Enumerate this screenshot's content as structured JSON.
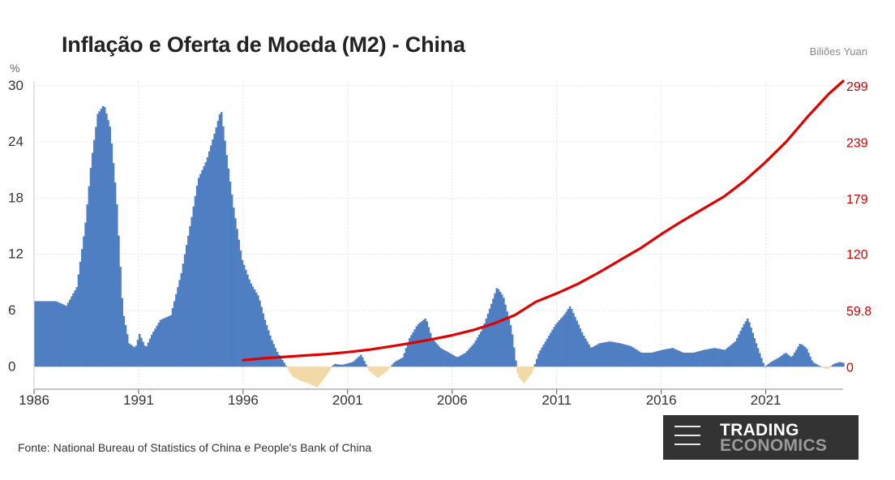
{
  "title": "Inflação e Oferta de Moeda (M2) - China",
  "left_unit": "%",
  "right_unit": "Biliões Yuan",
  "source": "Fonte: National Bureau of Statistics of China e People's Bank of China",
  "logo": {
    "line1": "TRADING",
    "line2": "ECONOMICS"
  },
  "chart_data": {
    "type": "bar+line",
    "x_ticks": [
      "1986",
      "1991",
      "1996",
      "2001",
      "2006",
      "2011",
      "2016",
      "2021"
    ],
    "x_range": [
      1986,
      2024.7
    ],
    "y_left": {
      "ticks": [
        "30",
        "24",
        "18",
        "12",
        "6",
        "0"
      ],
      "range": [
        -2.4,
        30.5
      ]
    },
    "y_right": {
      "ticks": [
        "299",
        "239",
        "179",
        "120",
        "59.8",
        "0"
      ],
      "range": [
        -23.9,
        304
      ]
    },
    "grid": true,
    "colors": {
      "positive_bars": "#4f7fc2",
      "negative_bars": "#f2d9a8",
      "m2_line": "#e00000",
      "right_axis_text": "#cc0000"
    },
    "inflation_series": {
      "name": "",
      "axis": "left",
      "points": [
        [
          1986.0,
          7.0
        ],
        [
          1987.0,
          7.0
        ],
        [
          1987.5,
          6.5
        ],
        [
          1988.0,
          8.5
        ],
        [
          1988.4,
          15.0
        ],
        [
          1988.7,
          22.0
        ],
        [
          1989.0,
          27.0
        ],
        [
          1989.3,
          28.0
        ],
        [
          1989.6,
          25.5
        ],
        [
          1989.9,
          18.0
        ],
        [
          1990.2,
          6.0
        ],
        [
          1990.5,
          2.5
        ],
        [
          1990.8,
          2.0
        ],
        [
          1991.0,
          3.5
        ],
        [
          1991.3,
          2.0
        ],
        [
          1991.6,
          3.5
        ],
        [
          1992.0,
          5.0
        ],
        [
          1992.5,
          5.5
        ],
        [
          1993.0,
          10.0
        ],
        [
          1993.5,
          16.0
        ],
        [
          1993.8,
          20.0
        ],
        [
          1994.2,
          22.0
        ],
        [
          1994.6,
          25.0
        ],
        [
          1994.9,
          27.5
        ],
        [
          1995.2,
          22.0
        ],
        [
          1995.5,
          17.0
        ],
        [
          1995.9,
          11.5
        ],
        [
          1996.3,
          9.0
        ],
        [
          1996.7,
          7.5
        ],
        [
          1997.0,
          5.0
        ],
        [
          1997.3,
          3.0
        ],
        [
          1997.6,
          1.5
        ],
        [
          1997.9,
          0.5
        ],
        [
          1998.3,
          -1.0
        ],
        [
          1998.7,
          -1.5
        ],
        [
          1999.1,
          -1.8
        ],
        [
          1999.5,
          -2.2
        ],
        [
          1999.9,
          -1.0
        ],
        [
          2000.3,
          0.3
        ],
        [
          2000.7,
          0.2
        ],
        [
          2001.2,
          0.5
        ],
        [
          2001.6,
          1.3
        ],
        [
          2002.0,
          -0.5
        ],
        [
          2002.4,
          -1.2
        ],
        [
          2002.8,
          -0.5
        ],
        [
          2003.2,
          0.5
        ],
        [
          2003.6,
          1.0
        ],
        [
          2003.9,
          3.0
        ],
        [
          2004.3,
          4.5
        ],
        [
          2004.7,
          5.2
        ],
        [
          2005.0,
          3.0
        ],
        [
          2005.4,
          2.0
        ],
        [
          2005.8,
          1.5
        ],
        [
          2006.2,
          1.0
        ],
        [
          2006.6,
          1.5
        ],
        [
          2007.0,
          2.5
        ],
        [
          2007.4,
          4.0
        ],
        [
          2007.8,
          6.5
        ],
        [
          2008.1,
          8.5
        ],
        [
          2008.4,
          7.5
        ],
        [
          2008.8,
          4.0
        ],
        [
          2009.1,
          -1.0
        ],
        [
          2009.4,
          -1.8
        ],
        [
          2009.8,
          -0.5
        ],
        [
          2010.1,
          1.5
        ],
        [
          2010.5,
          3.0
        ],
        [
          2010.9,
          4.5
        ],
        [
          2011.3,
          5.5
        ],
        [
          2011.6,
          6.5
        ],
        [
          2011.9,
          5.0
        ],
        [
          2012.2,
          3.5
        ],
        [
          2012.6,
          2.0
        ],
        [
          2013.0,
          2.5
        ],
        [
          2013.5,
          2.7
        ],
        [
          2014.0,
          2.5
        ],
        [
          2014.5,
          2.2
        ],
        [
          2015.0,
          1.5
        ],
        [
          2015.5,
          1.5
        ],
        [
          2016.0,
          1.8
        ],
        [
          2016.5,
          2.0
        ],
        [
          2017.0,
          1.5
        ],
        [
          2017.5,
          1.5
        ],
        [
          2018.0,
          1.8
        ],
        [
          2018.5,
          2.0
        ],
        [
          2019.0,
          1.8
        ],
        [
          2019.5,
          2.7
        ],
        [
          2019.9,
          4.5
        ],
        [
          2020.1,
          5.2
        ],
        [
          2020.5,
          2.5
        ],
        [
          2020.9,
          0.0
        ],
        [
          2021.2,
          0.5
        ],
        [
          2021.6,
          1.0
        ],
        [
          2021.9,
          1.5
        ],
        [
          2022.2,
          1.0
        ],
        [
          2022.6,
          2.5
        ],
        [
          2022.9,
          2.0
        ],
        [
          2023.2,
          0.5
        ],
        [
          2023.6,
          0.0
        ],
        [
          2023.9,
          -0.3
        ],
        [
          2024.2,
          0.3
        ],
        [
          2024.5,
          0.5
        ],
        [
          2024.7,
          0.4
        ]
      ]
    },
    "m2_series": {
      "name": "",
      "axis": "right",
      "points": [
        [
          1996.0,
          7.0
        ],
        [
          1997.0,
          9.0
        ],
        [
          1998.0,
          10.5
        ],
        [
          1999.0,
          12.0
        ],
        [
          2000.0,
          13.5
        ],
        [
          2001.0,
          15.5
        ],
        [
          2002.0,
          18.0
        ],
        [
          2003.0,
          21.5
        ],
        [
          2004.0,
          25.0
        ],
        [
          2005.0,
          29.0
        ],
        [
          2006.0,
          33.5
        ],
        [
          2007.0,
          39.0
        ],
        [
          2008.0,
          46.0
        ],
        [
          2009.0,
          55.0
        ],
        [
          2010.0,
          69.0
        ],
        [
          2011.0,
          78.0
        ],
        [
          2012.0,
          88.0
        ],
        [
          2013.0,
          100.0
        ],
        [
          2014.0,
          113.0
        ],
        [
          2015.0,
          126.0
        ],
        [
          2016.0,
          141.0
        ],
        [
          2017.0,
          155.0
        ],
        [
          2018.0,
          168.0
        ],
        [
          2019.0,
          181.0
        ],
        [
          2020.0,
          198.0
        ],
        [
          2021.0,
          218.0
        ],
        [
          2022.0,
          240.0
        ],
        [
          2023.0,
          266.0
        ],
        [
          2024.0,
          290.0
        ],
        [
          2024.7,
          304.0
        ]
      ]
    }
  }
}
